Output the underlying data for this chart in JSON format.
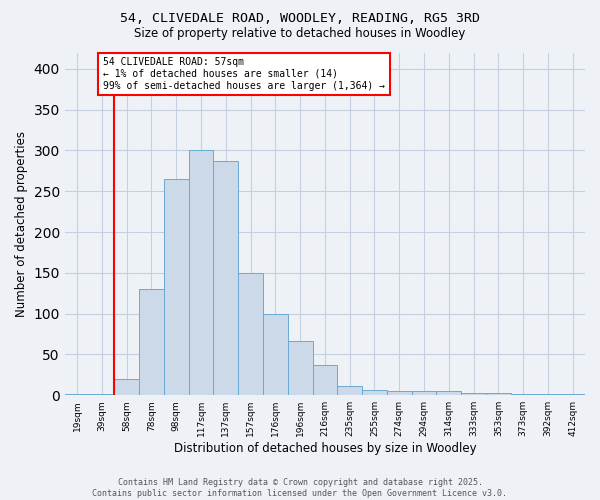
{
  "title_line1": "54, CLIVEDALE ROAD, WOODLEY, READING, RG5 3RD",
  "title_line2": "Size of property relative to detached houses in Woodley",
  "xlabel": "Distribution of detached houses by size in Woodley",
  "ylabel": "Number of detached properties",
  "bar_labels": [
    "19sqm",
    "39sqm",
    "58sqm",
    "78sqm",
    "98sqm",
    "117sqm",
    "137sqm",
    "157sqm",
    "176sqm",
    "196sqm",
    "216sqm",
    "235sqm",
    "255sqm",
    "274sqm",
    "294sqm",
    "314sqm",
    "333sqm",
    "353sqm",
    "373sqm",
    "392sqm",
    "412sqm"
  ],
  "bar_values": [
    2,
    2,
    20,
    130,
    265,
    300,
    287,
    150,
    100,
    67,
    37,
    11,
    6,
    5,
    5,
    5,
    3,
    3,
    2,
    1,
    2
  ],
  "bar_color": "#ccd9e8",
  "bar_edge_color": "#6aaad4",
  "red_line_index": 2,
  "annotation_text": "54 CLIVEDALE ROAD: 57sqm\n← 1% of detached houses are smaller (14)\n99% of semi-detached houses are larger (1,364) →",
  "annotation_box_color": "white",
  "annotation_box_edge_color": "red",
  "red_line_color": "red",
  "ylim": [
    0,
    420
  ],
  "yticks": [
    0,
    50,
    100,
    150,
    200,
    250,
    300,
    350,
    400
  ],
  "footer_line1": "Contains HM Land Registry data © Crown copyright and database right 2025.",
  "footer_line2": "Contains public sector information licensed under the Open Government Licence v3.0.",
  "background_color": "#eef2f7",
  "plot_background_color": "#eef2f7",
  "grid_color": "#c5cfe0"
}
